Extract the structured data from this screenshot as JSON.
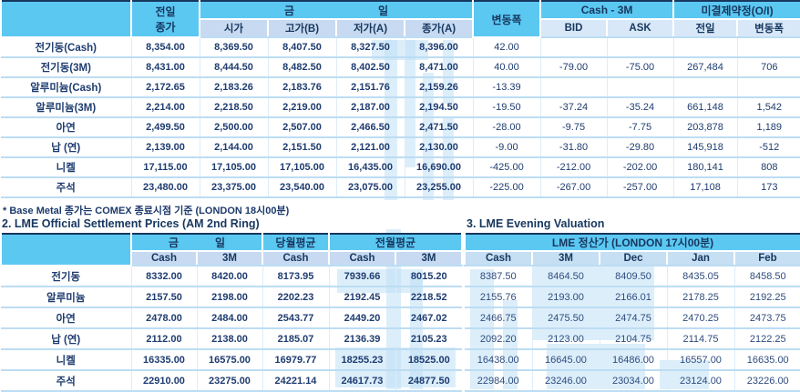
{
  "colors": {
    "header_cyan": "#5BC8F2",
    "subheader_blue": "#C7DAF1",
    "text_navy": "#17375E",
    "grid_blue": "#BCDDF3",
    "watermark_blue": "#BFE0F5"
  },
  "table1": {
    "col_prev_close_line1": "전일",
    "col_prev_close_line2": "종가",
    "group_today_left": "금",
    "group_today_right": "일",
    "sub_open": "시가",
    "sub_high": "고가(B)",
    "sub_low": "저가(A)",
    "sub_close": "종가(A)",
    "col_change": "변동폭",
    "group_cash3m": "Cash - 3M",
    "sub_bid": "BID",
    "sub_ask": "ASK",
    "group_oi": "미결제약정(O/I)",
    "sub_oi_prev": "전일",
    "sub_oi_change": "변동폭",
    "rows": [
      {
        "label": "전기동(Cash)",
        "cells": [
          "8,354.00",
          "8,369.50",
          "8,407.50",
          "8,327.50",
          "8,396.00",
          "42.00",
          "",
          "",
          "",
          ""
        ]
      },
      {
        "label": "전기동(3M)",
        "cells": [
          "8,431.00",
          "8,444.50",
          "8,482.50",
          "8,402.50",
          "8,471.00",
          "40.00",
          "-79.00",
          "-75.00",
          "267,484",
          "706"
        ]
      },
      {
        "label": "알루미늄(Cash)",
        "cells": [
          "2,172.65",
          "2,183.26",
          "2,183.76",
          "2,151.76",
          "2,159.26",
          "-13.39",
          "",
          "",
          "",
          ""
        ]
      },
      {
        "label": "알루미늄(3M)",
        "cells": [
          "2,214.00",
          "2,218.50",
          "2,219.00",
          "2,187.00",
          "2,194.50",
          "-19.50",
          "-37.24",
          "-35.24",
          "661,148",
          "1,542"
        ]
      },
      {
        "label": "아연",
        "cells": [
          "2,499.50",
          "2,500.00",
          "2,507.00",
          "2,466.50",
          "2,471.50",
          "-28.00",
          "-9.75",
          "-7.75",
          "203,878",
          "1,189"
        ]
      },
      {
        "label": "납 (연)",
        "cells": [
          "2,139.00",
          "2,144.00",
          "2,151.50",
          "2,121.00",
          "2,130.00",
          "-9.00",
          "-31.80",
          "-29.80",
          "145,918",
          "-512"
        ]
      },
      {
        "label": "니켈",
        "cells": [
          "17,115.00",
          "17,105.00",
          "17,105.00",
          "16,435.00",
          "16,690.00",
          "-425.00",
          "-212.00",
          "-202.00",
          "180,141",
          "808"
        ]
      },
      {
        "label": "주석",
        "cells": [
          "23,480.00",
          "23,375.00",
          "23,540.00",
          "23,075.00",
          "23,255.00",
          "-225.00",
          "-267.00",
          "-257.00",
          "17,108",
          "173"
        ]
      }
    ],
    "footnote": "* Base Metal 종가는 COMEX 종료시점 기준 (LONDON 18시00분)"
  },
  "table2": {
    "title": "2. LME Official Settlement Prices (AM 2nd Ring)",
    "group_today_left": "금",
    "group_today_right": "일",
    "group_month_avg": "당월평균",
    "group_prev_month_avg": "전월평균",
    "subheaders": [
      "Cash",
      "3M",
      "Cash",
      "Cash",
      "3M"
    ],
    "rows": [
      {
        "label": "전기동",
        "cells": [
          "8332.00",
          "8420.00",
          "8173.95",
          "7939.66",
          "8015.20"
        ]
      },
      {
        "label": "알루미늄",
        "cells": [
          "2157.50",
          "2198.00",
          "2202.23",
          "2192.45",
          "2218.52"
        ]
      },
      {
        "label": "아연",
        "cells": [
          "2478.00",
          "2484.00",
          "2543.77",
          "2449.20",
          "2467.02"
        ]
      },
      {
        "label": "납 (연)",
        "cells": [
          "2112.00",
          "2138.00",
          "2185.07",
          "2136.39",
          "2105.23"
        ]
      },
      {
        "label": "니켈",
        "cells": [
          "16335.00",
          "16575.00",
          "16979.77",
          "18255.23",
          "18525.00"
        ]
      },
      {
        "label": "주석",
        "cells": [
          "22910.00",
          "23275.00",
          "24221.14",
          "24617.73",
          "24877.50"
        ]
      }
    ]
  },
  "table3": {
    "title": "3. LME Evening Valuation",
    "group_header": "LME 정산가 (LONDON 17시00분)",
    "subheaders": [
      "Cash",
      "3M",
      "Dec",
      "Jan",
      "Feb"
    ],
    "rows": [
      {
        "cells": [
          "8387.50",
          "8464.50",
          "8409.50",
          "8435.05",
          "8458.50"
        ]
      },
      {
        "cells": [
          "2155.76",
          "2193.00",
          "2166.01",
          "2178.25",
          "2192.25"
        ]
      },
      {
        "cells": [
          "2466.75",
          "2475.50",
          "2474.75",
          "2470.25",
          "2473.75"
        ]
      },
      {
        "cells": [
          "2092.20",
          "2123.00",
          "2104.75",
          "2114.75",
          "2122.25"
        ]
      },
      {
        "cells": [
          "16438.00",
          "16645.00",
          "16486.00",
          "16557.00",
          "16635.00"
        ]
      },
      {
        "cells": [
          "22984.00",
          "23246.00",
          "23034.00",
          "23124.00",
          "23226.00"
        ]
      }
    ]
  }
}
